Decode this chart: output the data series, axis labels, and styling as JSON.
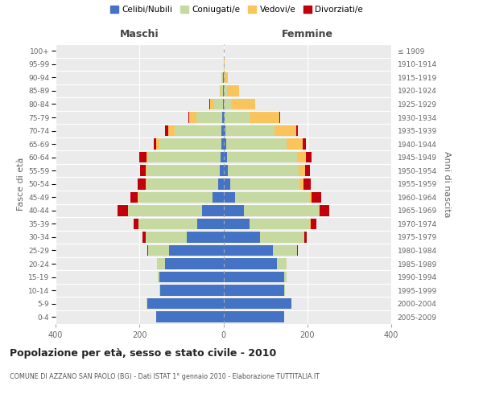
{
  "age_groups": [
    "0-4",
    "5-9",
    "10-14",
    "15-19",
    "20-24",
    "25-29",
    "30-34",
    "35-39",
    "40-44",
    "45-49",
    "50-54",
    "55-59",
    "60-64",
    "65-69",
    "70-74",
    "75-79",
    "80-84",
    "85-89",
    "90-94",
    "95-99",
    "100+"
  ],
  "birth_years": [
    "2005-2009",
    "2000-2004",
    "1995-1999",
    "1990-1994",
    "1985-1989",
    "1980-1984",
    "1975-1979",
    "1970-1974",
    "1965-1969",
    "1960-1964",
    "1955-1959",
    "1950-1954",
    "1945-1949",
    "1940-1944",
    "1935-1939",
    "1930-1934",
    "1925-1929",
    "1920-1924",
    "1915-1919",
    "1910-1914",
    "≤ 1909"
  ],
  "males_celibi": [
    160,
    182,
    150,
    152,
    140,
    130,
    88,
    62,
    50,
    25,
    12,
    8,
    7,
    5,
    4,
    2,
    1,
    1,
    1,
    0,
    0
  ],
  "males_coniugati": [
    0,
    1,
    2,
    4,
    18,
    50,
    98,
    140,
    178,
    178,
    172,
    175,
    172,
    148,
    112,
    62,
    22,
    6,
    3,
    0,
    0
  ],
  "males_vedovi": [
    0,
    0,
    0,
    0,
    0,
    0,
    0,
    0,
    0,
    1,
    2,
    3,
    4,
    8,
    15,
    18,
    8,
    2,
    0,
    0,
    0
  ],
  "males_divorziati": [
    0,
    0,
    0,
    0,
    0,
    2,
    7,
    12,
    25,
    18,
    18,
    12,
    18,
    4,
    8,
    2,
    2,
    0,
    0,
    0,
    0
  ],
  "females_nubili": [
    145,
    162,
    145,
    145,
    128,
    118,
    88,
    62,
    48,
    28,
    16,
    10,
    8,
    6,
    4,
    2,
    1,
    1,
    1,
    0,
    0
  ],
  "females_coniugate": [
    0,
    1,
    2,
    5,
    22,
    58,
    105,
    145,
    180,
    178,
    165,
    170,
    168,
    145,
    118,
    60,
    20,
    7,
    2,
    0,
    0
  ],
  "females_vedove": [
    0,
    0,
    0,
    0,
    0,
    0,
    0,
    1,
    2,
    5,
    10,
    14,
    20,
    38,
    52,
    72,
    55,
    30,
    8,
    2,
    0
  ],
  "females_divorziate": [
    0,
    0,
    0,
    0,
    0,
    2,
    5,
    14,
    22,
    22,
    18,
    12,
    15,
    8,
    4,
    2,
    0,
    0,
    0,
    0,
    0
  ],
  "color_celibi": "#4472C4",
  "color_coniugati": "#C5D9A0",
  "color_vedovi": "#FAC45C",
  "color_divorziati": "#C0000A",
  "xlim": 400,
  "bg_color": "#EBEBEB",
  "grid_color": "#FFFFFF",
  "title": "Popolazione per età, sesso e stato civile - 2010",
  "subtitle": "COMUNE DI AZZANO SAN PAOLO (BG) - Dati ISTAT 1° gennaio 2010 - Elaborazione TUTTITALIA.IT",
  "ylabel_left": "Fasce di età",
  "ylabel_right": "Anni di nascita",
  "xlabel_left": "Maschi",
  "xlabel_right": "Femmine"
}
